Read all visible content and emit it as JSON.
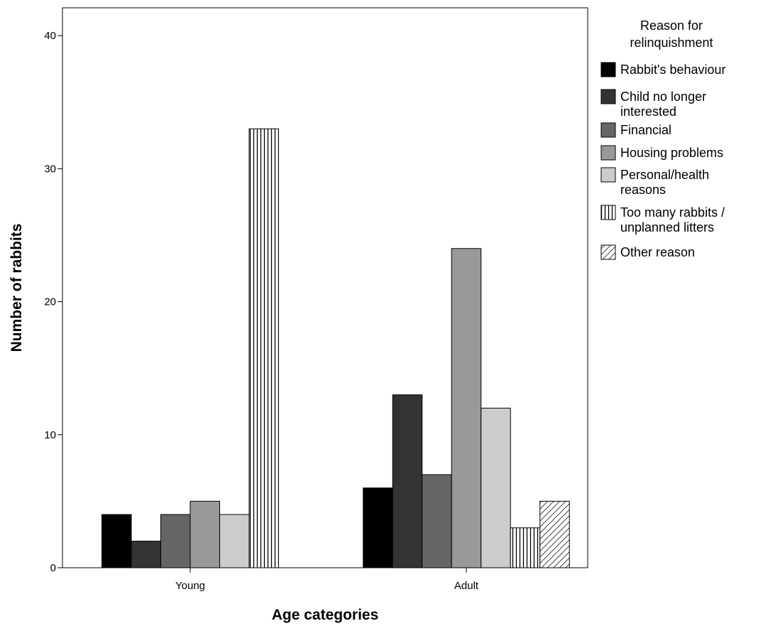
{
  "chart_data": {
    "type": "bar",
    "xlabel": "Age categories",
    "ylabel": "Number of rabbits",
    "ylim": [
      0,
      41
    ],
    "yticks": [
      0,
      10,
      20,
      30,
      40
    ],
    "grid": false,
    "legend_position": "right",
    "legend_title": [
      "Reason for",
      "relinquishment"
    ],
    "categories": [
      "Young",
      "Adult"
    ],
    "series": [
      {
        "name": [
          "Rabbit's behaviour"
        ],
        "fill": "#000000",
        "pattern": "solid",
        "values": [
          4,
          6
        ]
      },
      {
        "name": [
          "Child no longer",
          "interested"
        ],
        "fill": "#333333",
        "pattern": "solid",
        "values": [
          2,
          13
        ]
      },
      {
        "name": [
          "Financial"
        ],
        "fill": "#666666",
        "pattern": "solid",
        "values": [
          4,
          7
        ]
      },
      {
        "name": [
          "Housing problems"
        ],
        "fill": "#999999",
        "pattern": "solid",
        "values": [
          5,
          24
        ]
      },
      {
        "name": [
          "Personal/health",
          "reasons"
        ],
        "fill": "#cccccc",
        "pattern": "solid",
        "values": [
          4,
          12
        ]
      },
      {
        "name": [
          "Too many rabbits /",
          "unplanned litters"
        ],
        "fill": "#ffffff",
        "pattern": "vertical",
        "values": [
          33,
          3
        ]
      },
      {
        "name": [
          "Other reason"
        ],
        "fill": "#ffffff",
        "pattern": "diagonal",
        "values": [
          null,
          5
        ]
      }
    ]
  }
}
